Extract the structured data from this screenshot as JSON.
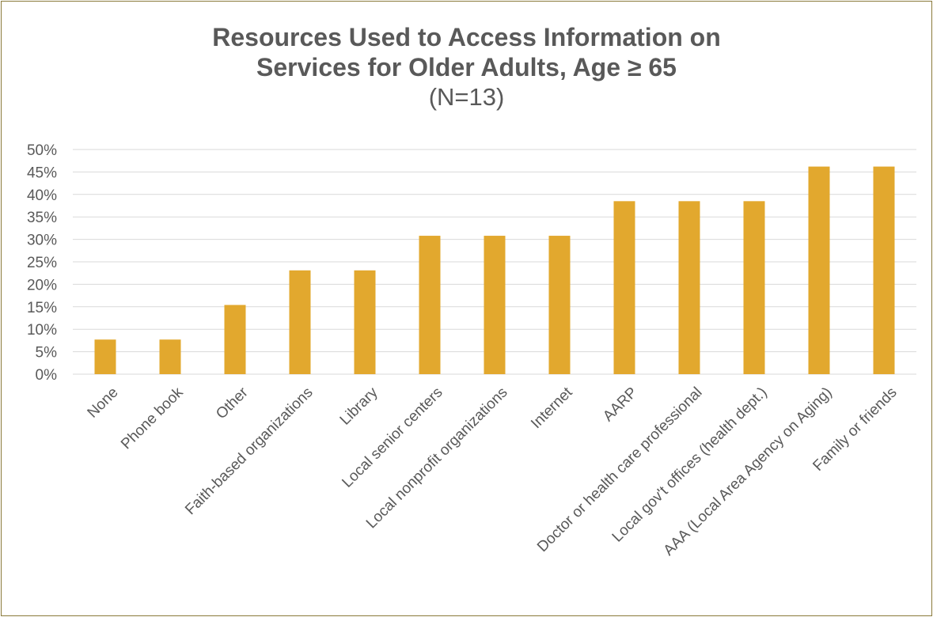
{
  "chart_data": {
    "type": "bar",
    "title": "Resources Used to Access Information on Services for Older Adults, Age ≥ 65",
    "title_lines": [
      "Resources Used to Access Information on",
      "Services for Older Adults, Age ≥ 65"
    ],
    "subtitle": "(N=13)",
    "xlabel": "",
    "ylabel": "",
    "ylim": [
      0,
      50
    ],
    "yticks": [
      0,
      5,
      10,
      15,
      20,
      25,
      30,
      35,
      40,
      45,
      50
    ],
    "ytick_labels": [
      "0%",
      "5%",
      "10%",
      "15%",
      "20%",
      "25%",
      "30%",
      "35%",
      "40%",
      "45%",
      "50%"
    ],
    "grid": true,
    "legend": "none",
    "bar_color": "#E2A82E",
    "categories": [
      "None",
      "Phone book",
      "Other",
      "Faith-based organizations",
      "Library",
      "Local senior centers",
      "Local nonprofit organizations",
      "Internet",
      "AARP",
      "Doctor or health care professional",
      "Local gov't offices (health dept.)",
      "AAA (Local Area Agency on Aging)",
      "Family or friends"
    ],
    "values": [
      7.7,
      7.7,
      15.4,
      23.1,
      23.1,
      30.8,
      30.8,
      30.8,
      38.5,
      38.5,
      38.5,
      46.2,
      46.2
    ]
  }
}
